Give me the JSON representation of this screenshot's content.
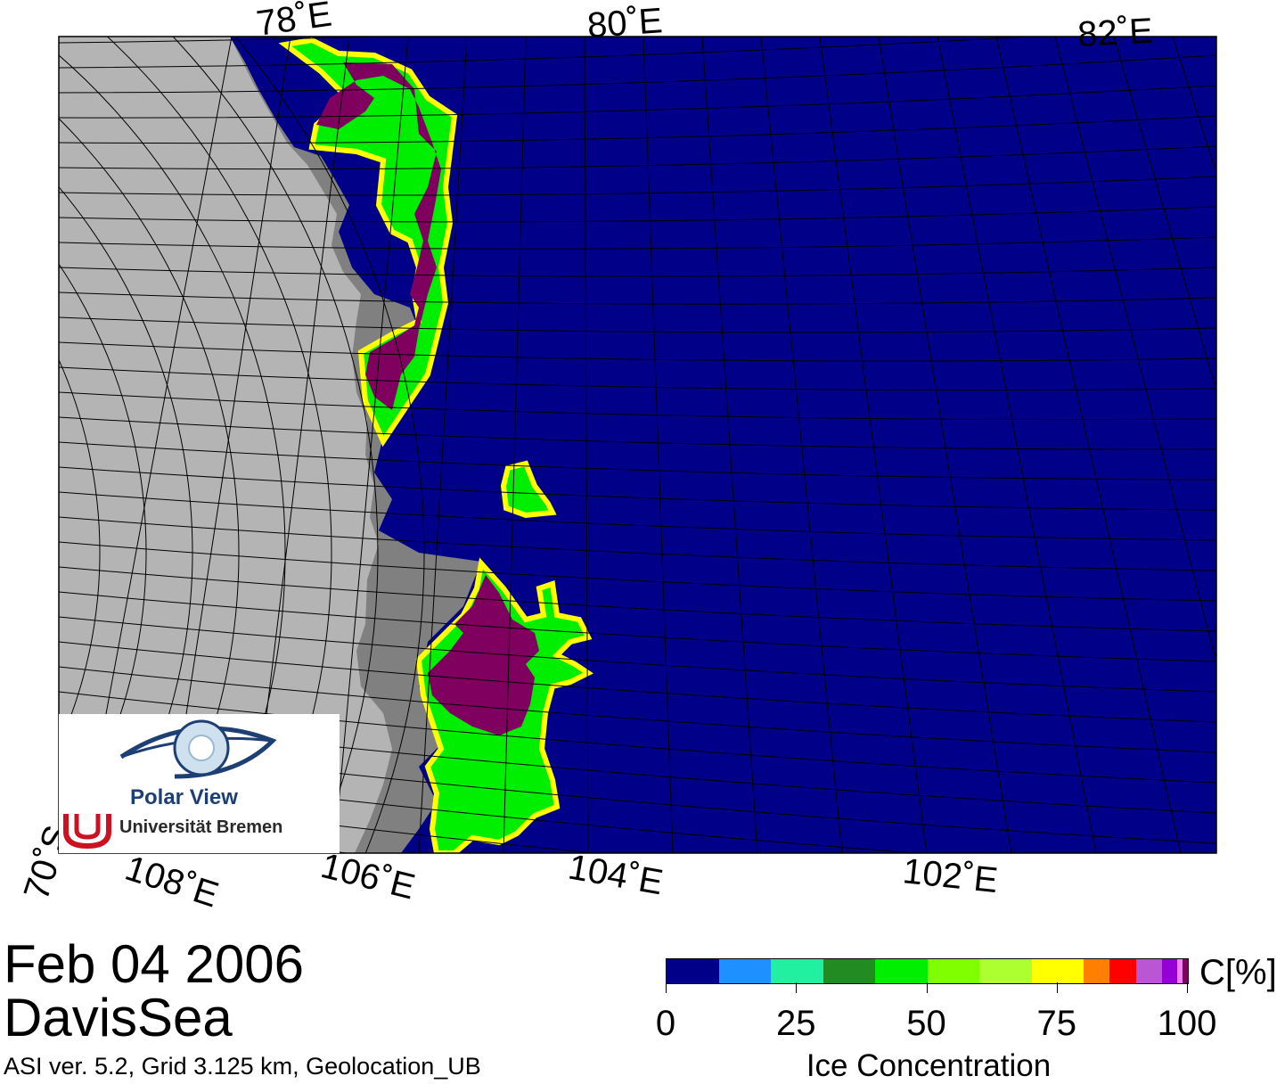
{
  "header": {
    "date": "Feb 04 2006",
    "region": "DavisSea",
    "method": "ASI ver. 5.2,  Grid 3.125 km, Geolocation_UB"
  },
  "map": {
    "top_longitude_labels": [
      "78˚E",
      "80˚E",
      "82˚E"
    ],
    "bottom_longitude_labels": [
      "108˚E",
      "106˚E",
      "104˚E",
      "102˚E"
    ],
    "latitude_labels": [
      "70˚S"
    ],
    "colors": {
      "ocean": "#000088",
      "land": "#b4b4b4",
      "ice_shelf": "#808080",
      "dense_ice": "#800060",
      "graticule": "#000000"
    }
  },
  "logo": {
    "title": "Polar View",
    "subtitle": "Universität Bremen",
    "brand_color": "#1d3f74",
    "accent_color": "#cc1122"
  },
  "colorbar": {
    "title": "Ice Concentration",
    "unit": "C[%]",
    "min": 0,
    "max": 100,
    "ticks": [
      "0",
      "25",
      "50",
      "75",
      "100"
    ],
    "tick_values": [
      0,
      25,
      50,
      75,
      100
    ],
    "segments": [
      {
        "from": 0,
        "to": 10,
        "color": "#000088"
      },
      {
        "from": 10,
        "to": 20,
        "color": "#1e90ff"
      },
      {
        "from": 20,
        "to": 30,
        "color": "#20f0a0"
      },
      {
        "from": 30,
        "to": 40,
        "color": "#228b22"
      },
      {
        "from": 40,
        "to": 50,
        "color": "#00ee00"
      },
      {
        "from": 50,
        "to": 60,
        "color": "#7fff00"
      },
      {
        "from": 60,
        "to": 70,
        "color": "#adff2f"
      },
      {
        "from": 70,
        "to": 80,
        "color": "#ffff00"
      },
      {
        "from": 80,
        "to": 85,
        "color": "#ff8000"
      },
      {
        "from": 85,
        "to": 90,
        "color": "#ff0000"
      },
      {
        "from": 90,
        "to": 95,
        "color": "#ba55d3"
      },
      {
        "from": 95,
        "to": 98,
        "color": "#9400d3"
      },
      {
        "from": 98,
        "to": 99,
        "color": "#ee82ee"
      },
      {
        "from": 99,
        "to": 100,
        "color": "#800060"
      }
    ]
  }
}
